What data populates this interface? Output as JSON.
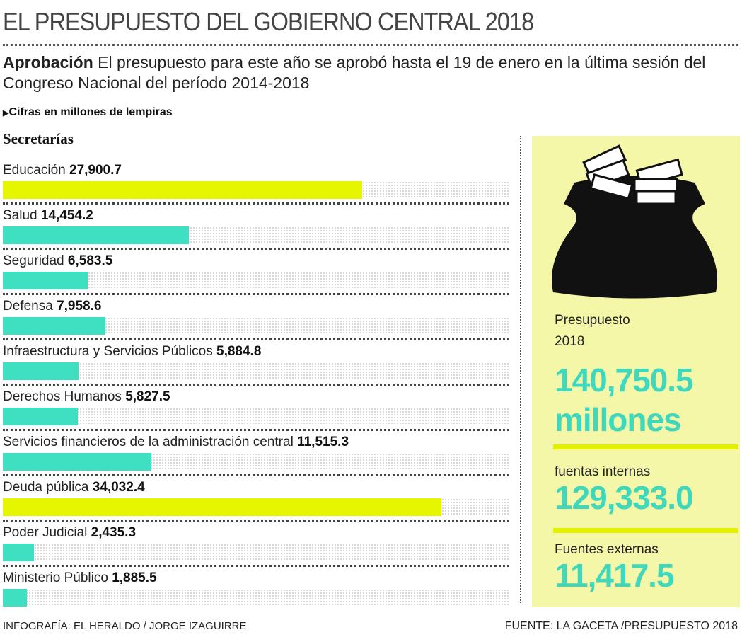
{
  "title": "EL PRESUPUESTO DEL GOBIERNO CENTRAL 2018",
  "lead": {
    "bold": "Aprobación",
    "text": "El presupuesto para este año se aprobó hasta el 19 de enero en la última sesión del Congreso Nacional del período 2014-2018"
  },
  "unit_note": "Cifras en millones de lempiras",
  "section": "Secretarías",
  "colors": {
    "highlight": "#e6f600",
    "bar": "#3fe0c2",
    "panel": "#f4f7a8",
    "big_number": "#3fd8bd"
  },
  "chart_data": {
    "type": "bar",
    "orientation": "horizontal",
    "categories": [
      "Educación",
      "Salud",
      "Seguridad",
      "Defensa",
      "Infraestructura y Servicios Públicos",
      "Derechos Humanos",
      "Servicios financieros de la administración central",
      "Deuda pública",
      "Poder Judicial",
      "Ministerio Público"
    ],
    "values": [
      27900.7,
      14454.2,
      6583.5,
      7958.6,
      5884.8,
      5827.5,
      11515.3,
      34032.4,
      2435.3,
      1885.5
    ],
    "value_labels": [
      "27,900.7",
      "14,454.2",
      "6,583.5",
      "7,958.6",
      "5,884.8",
      "5,827.5",
      "11,515.3",
      "34,032.4",
      "2,435.3",
      "1,885.5"
    ],
    "highlighted": [
      "Educación",
      "Deuda pública"
    ],
    "xlim": [
      0,
      36000
    ]
  },
  "panel": {
    "icon": "money-bag-icon",
    "label1": "Presupuesto",
    "label2": "2018",
    "total": "140,750.5",
    "total_unit": "millones",
    "internal_label": "fuentas internas",
    "internal_value": "129,333.0",
    "external_label": "Fuentes externas",
    "external_value": "11,417.5"
  },
  "footer": {
    "credit": "INFOGRAFÍA: EL HERALDO / JORGE IZAGUIRRE",
    "source": "FUENTE: LA GACETA /PRESUPUESTO 2018"
  }
}
